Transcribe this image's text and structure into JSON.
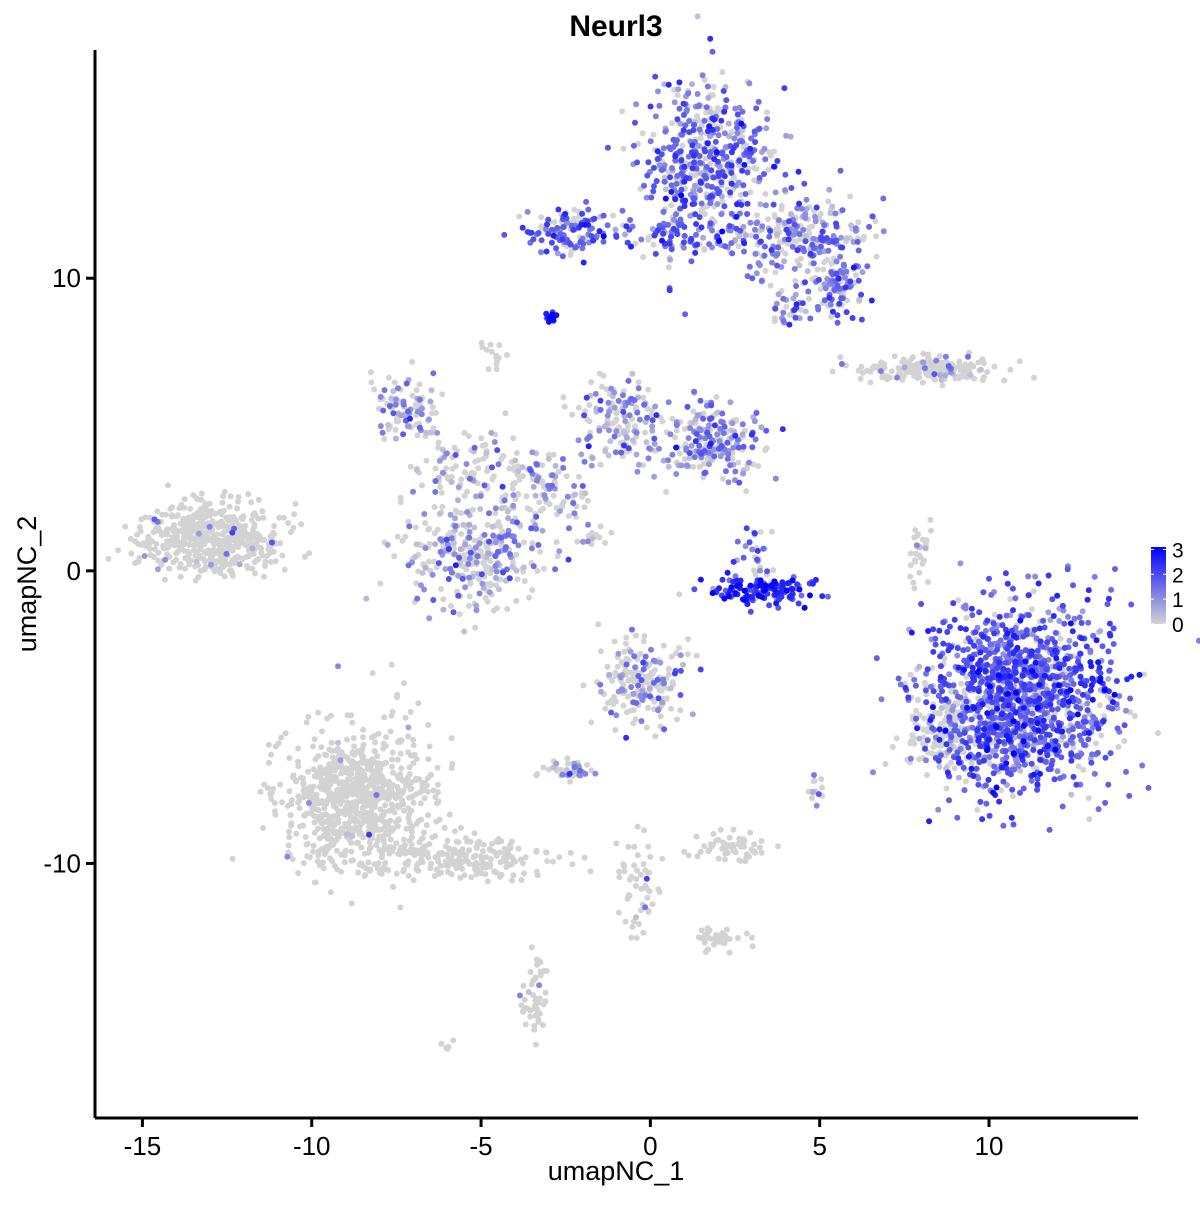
{
  "chart_data": {
    "type": "scatter",
    "title": "Neurl3",
    "xlabel": "umapNC_1",
    "ylabel": "umapNC_2",
    "xlim": [
      -16.4,
      14.4
    ],
    "ylim": [
      -18.7,
      17.8
    ],
    "xticks": [
      -15,
      -10,
      -5,
      0,
      5,
      10
    ],
    "yticks": [
      -10,
      0,
      10
    ],
    "grid": false,
    "legend": {
      "placement": "right",
      "type": "colorbar",
      "ticks": [
        0,
        1,
        2,
        3
      ],
      "range": [
        0,
        3.1
      ],
      "low_color": "#D3D3D3",
      "high_color": "#0000FF"
    },
    "clusters": [
      {
        "x": 1.6,
        "y": 14.0,
        "sx": 1.0,
        "sy": 1.3,
        "n": 520,
        "expr": 1.5,
        "frac": 0.7
      },
      {
        "x": 4.4,
        "y": 11.4,
        "sx": 1.0,
        "sy": 0.7,
        "n": 250,
        "expr": 1.3,
        "frac": 0.6
      },
      {
        "x": 5.5,
        "y": 9.8,
        "sx": 0.4,
        "sy": 0.5,
        "n": 100,
        "expr": 1.5,
        "frac": 0.7
      },
      {
        "x": 4.0,
        "y": 9.0,
        "sx": 0.3,
        "sy": 0.3,
        "n": 30,
        "expr": 1.4,
        "frac": 0.7
      },
      {
        "x": -2.4,
        "y": 11.6,
        "sx": 0.8,
        "sy": 0.4,
        "n": 130,
        "expr": 1.7,
        "frac": 0.75
      },
      {
        "x": 0.9,
        "y": 11.3,
        "sx": 0.8,
        "sy": 0.35,
        "n": 60,
        "expr": 1.6,
        "frac": 0.7
      },
      {
        "x": -2.9,
        "y": 8.7,
        "sx": 0.1,
        "sy": 0.1,
        "n": 15,
        "expr": 2.5,
        "frac": 1.0
      },
      {
        "x": -4.6,
        "y": 7.4,
        "sx": 0.2,
        "sy": 0.2,
        "n": 15,
        "expr": 0,
        "frac": 0
      },
      {
        "x": -7.2,
        "y": 5.5,
        "sx": 0.5,
        "sy": 0.6,
        "n": 100,
        "expr": 1.0,
        "frac": 0.5
      },
      {
        "x": -5.3,
        "y": 3.6,
        "sx": 1.0,
        "sy": 0.6,
        "n": 90,
        "expr": 0.9,
        "frac": 0.4
      },
      {
        "x": -5.3,
        "y": 0.6,
        "sx": 1.0,
        "sy": 0.9,
        "n": 320,
        "expr": 0.9,
        "frac": 0.45
      },
      {
        "x": -3.2,
        "y": 2.8,
        "sx": 0.8,
        "sy": 0.7,
        "n": 110,
        "expr": 0.9,
        "frac": 0.45
      },
      {
        "x": -0.9,
        "y": 5.2,
        "sx": 0.6,
        "sy": 0.8,
        "n": 150,
        "expr": 1.0,
        "frac": 0.5
      },
      {
        "x": 1.8,
        "y": 4.4,
        "sx": 0.7,
        "sy": 0.6,
        "n": 210,
        "expr": 1.2,
        "frac": 0.6
      },
      {
        "x": -2.0,
        "y": 1.2,
        "sx": 0.6,
        "sy": 0.3,
        "n": 20,
        "expr": 0.8,
        "frac": 0.4
      },
      {
        "x": 3.3,
        "y": -0.7,
        "sx": 0.8,
        "sy": 0.25,
        "n": 130,
        "expr": 2.3,
        "frac": 0.95
      },
      {
        "x": 3.1,
        "y": 0.7,
        "sx": 0.3,
        "sy": 0.5,
        "n": 30,
        "expr": 1.5,
        "frac": 0.7
      },
      {
        "x": -13.0,
        "y": 1.1,
        "sx": 1.0,
        "sy": 0.6,
        "n": 520,
        "expr": 0.8,
        "frac": 0.03
      },
      {
        "x": 8.3,
        "y": 6.9,
        "sx": 1.1,
        "sy": 0.22,
        "n": 180,
        "expr": 0.8,
        "frac": 0.08
      },
      {
        "x": 8.0,
        "y": 0.7,
        "sx": 0.2,
        "sy": 0.6,
        "n": 30,
        "expr": 0.8,
        "frac": 0.15
      },
      {
        "x": 10.9,
        "y": -4.3,
        "sx": 1.4,
        "sy": 1.5,
        "n": 1400,
        "expr": 1.7,
        "frac": 0.85
      },
      {
        "x": 8.6,
        "y": -5.4,
        "sx": 0.5,
        "sy": 0.8,
        "n": 150,
        "expr": 0.8,
        "frac": 0.1
      },
      {
        "x": -8.6,
        "y": -7.8,
        "sx": 1.1,
        "sy": 1.2,
        "n": 800,
        "expr": 0.8,
        "frac": 0.01
      },
      {
        "x": -5.3,
        "y": -9.8,
        "sx": 1.3,
        "sy": 0.4,
        "n": 200,
        "expr": 0.8,
        "frac": 0.01
      },
      {
        "x": -0.3,
        "y": -3.8,
        "sx": 0.6,
        "sy": 0.7,
        "n": 200,
        "expr": 1.0,
        "frac": 0.35
      },
      {
        "x": -2.4,
        "y": -6.8,
        "sx": 0.35,
        "sy": 0.2,
        "n": 40,
        "expr": 0.9,
        "frac": 0.4
      },
      {
        "x": 2.4,
        "y": -9.5,
        "sx": 0.5,
        "sy": 0.25,
        "n": 60,
        "expr": 0,
        "frac": 0
      },
      {
        "x": 2.1,
        "y": -12.6,
        "sx": 0.4,
        "sy": 0.2,
        "n": 40,
        "expr": 0,
        "frac": 0
      },
      {
        "x": -3.4,
        "y": -14.6,
        "sx": 0.2,
        "sy": 0.7,
        "n": 50,
        "expr": 0.8,
        "frac": 0.05
      },
      {
        "x": -0.3,
        "y": -10.8,
        "sx": 0.3,
        "sy": 0.8,
        "n": 50,
        "expr": 0.8,
        "frac": 0.05
      },
      {
        "x": 4.9,
        "y": -7.5,
        "sx": 0.1,
        "sy": 0.3,
        "n": 15,
        "expr": 0.8,
        "frac": 0.2
      },
      {
        "x": -6.0,
        "y": -16.2,
        "sx": 0.1,
        "sy": 0.1,
        "n": 5,
        "expr": 0,
        "frac": 0
      }
    ]
  }
}
